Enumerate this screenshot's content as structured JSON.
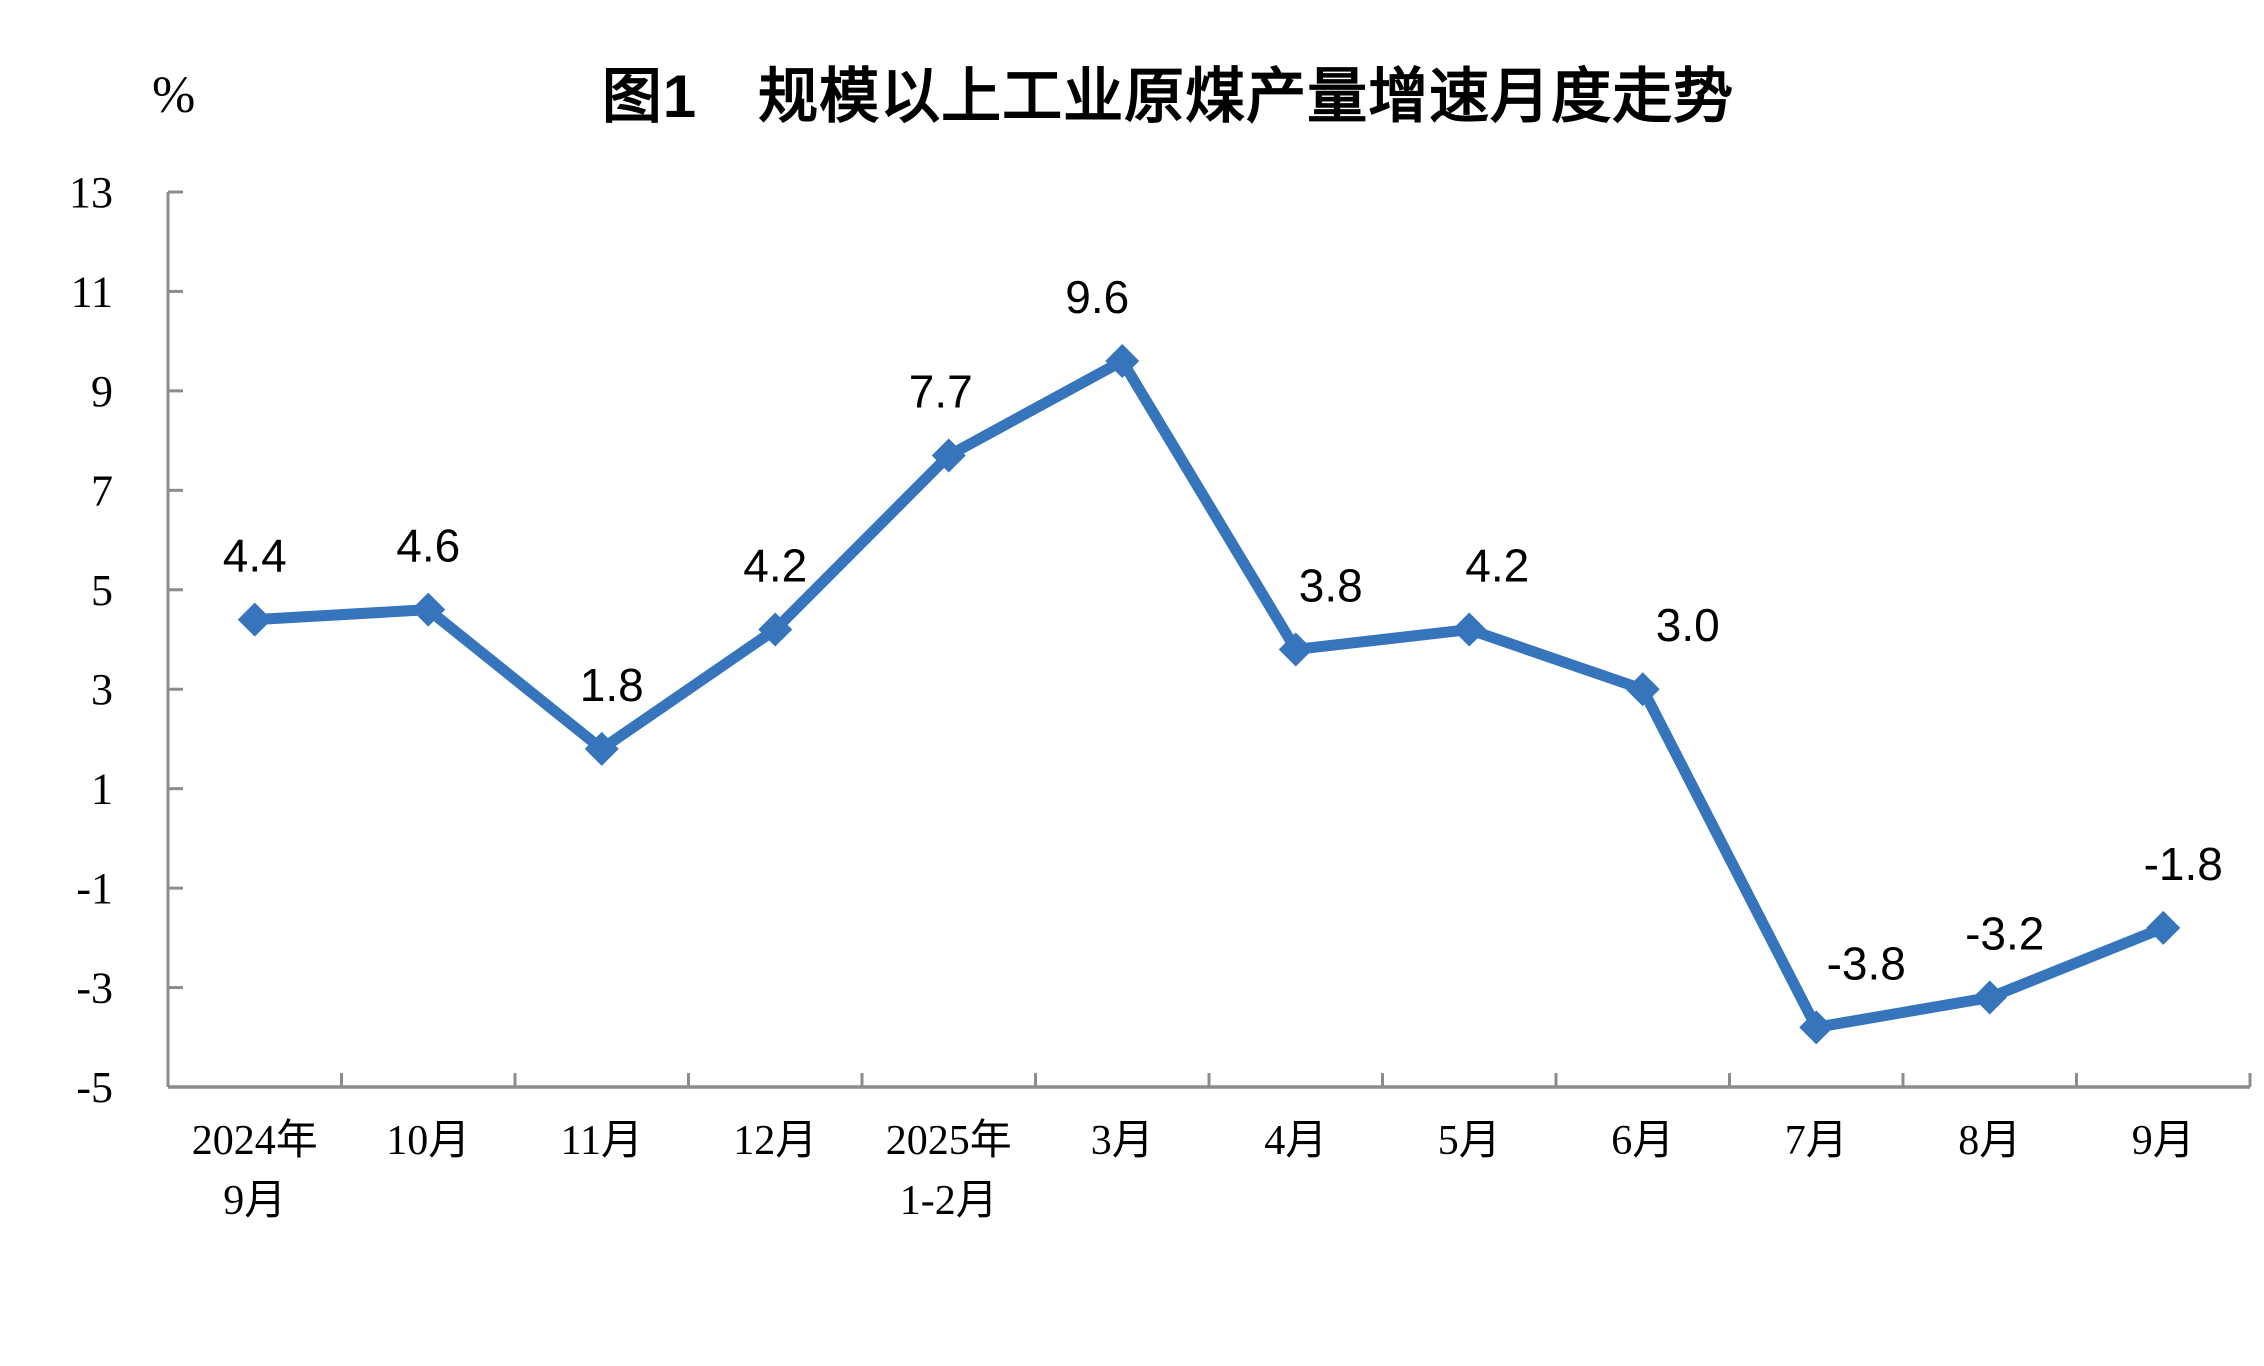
{
  "chart_data": {
    "type": "line",
    "title": "图1　规模以上工业原煤产量增速月度走势",
    "ylabel": "%",
    "xlabel": "",
    "categories": [
      [
        "2024年",
        "9月"
      ],
      [
        "10月"
      ],
      [
        "11月"
      ],
      [
        "12月"
      ],
      [
        "2025年",
        "1-2月"
      ],
      [
        "3月"
      ],
      [
        "4月"
      ],
      [
        "5月"
      ],
      [
        "6月"
      ],
      [
        "7月"
      ],
      [
        "8月"
      ],
      [
        "9月"
      ]
    ],
    "values": [
      4.4,
      4.6,
      1.8,
      4.2,
      7.7,
      9.6,
      3.8,
      4.2,
      3.0,
      -3.8,
      -3.2,
      -1.8
    ],
    "data_labels": [
      "4.4",
      "4.6",
      "1.8",
      "4.2",
      "7.7",
      "9.6",
      "3.8",
      "4.2",
      "3.0",
      "-3.8",
      "-3.2",
      "-1.8"
    ],
    "ylim": [
      -5,
      13
    ],
    "yticks": [
      13,
      11,
      9,
      7,
      5,
      3,
      1,
      -1,
      -3,
      -5
    ],
    "grid": false,
    "legend": "none",
    "colors": {
      "line": "#3674BC",
      "marker": "#3674BC",
      "axis": "#8C8C8C",
      "text": "#000000",
      "background": "#FFFFFF"
    }
  }
}
